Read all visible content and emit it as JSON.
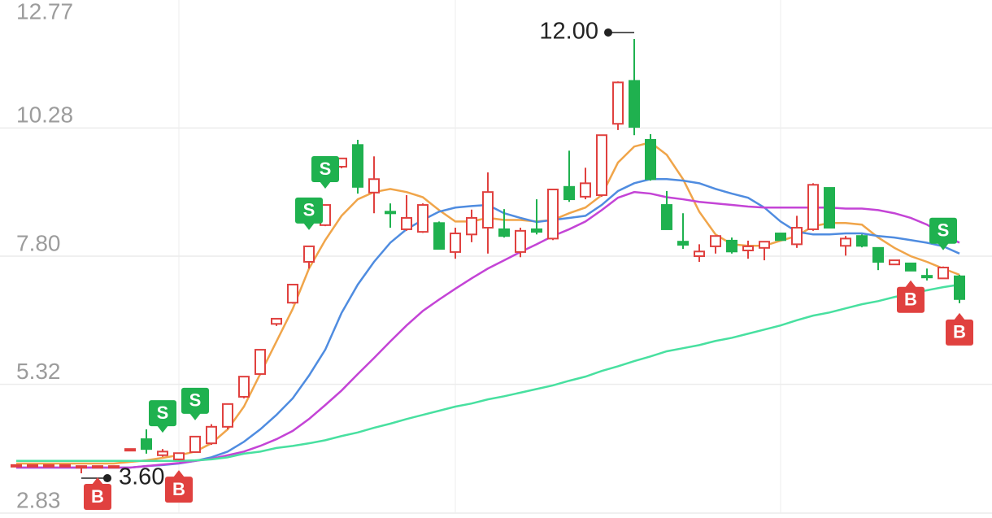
{
  "chart_data": {
    "type": "candlestick",
    "ylim": [
      2.83,
      12.77
    ],
    "yticks": [
      2.83,
      5.32,
      {
        "value": 7.8,
        "label": "7.80"
      },
      10.28,
      12.77
    ],
    "grid": true,
    "up_color": "#e0413f",
    "down_color": "#1fb14f",
    "open": [
      3.74,
      3.74,
      3.74,
      3.74,
      3.71,
      3.71,
      3.71,
      4.05,
      4.26,
      3.95,
      3.87,
      4.01,
      4.18,
      4.5,
      5.08,
      5.52,
      6.49,
      6.9,
      7.69,
      8.4,
      9.53,
      9.95,
      9.03,
      8.66,
      8.32,
      8.27,
      8.44,
      7.88,
      8.22,
      8.35,
      8.32,
      7.88,
      8.32,
      8.14,
      9.14,
      8.95,
      8.98,
      10.36,
      11.19,
      10.05,
      8.79,
      8.08,
      7.8,
      7.99,
      8.1,
      7.91,
      7.96,
      8.24,
      8.03,
      8.32,
      9.12,
      8.0,
      8.19,
      7.96,
      7.64,
      7.66,
      7.42,
      7.37,
      7.41
    ],
    "high": [
      3.76,
      3.76,
      3.76,
      3.76,
      3.74,
      3.74,
      3.74,
      4.07,
      4.45,
      4.07,
      3.99,
      4.31,
      4.55,
      4.94,
      5.47,
      5.99,
      6.59,
      7.25,
      7.99,
      8.79,
      9.69,
      10.05,
      9.73,
      8.82,
      8.98,
      8.82,
      8.47,
      8.35,
      8.7,
      9.42,
      8.71,
      8.35,
      8.9,
      9.09,
      9.84,
      9.51,
      10.14,
      11.18,
      12.0,
      10.16,
      9.06,
      8.63,
      8.03,
      8.19,
      8.16,
      8.1,
      8.08,
      8.24,
      8.58,
      9.21,
      9.12,
      8.19,
      8.22,
      7.96,
      7.72,
      7.66,
      7.56,
      7.6,
      7.44
    ],
    "low": [
      3.74,
      3.74,
      3.74,
      3.74,
      3.6,
      3.71,
      3.71,
      4.05,
      3.98,
      3.92,
      3.85,
      4.0,
      4.15,
      4.45,
      5.05,
      5.5,
      6.45,
      6.88,
      7.56,
      8.38,
      9.5,
      9.01,
      8.63,
      8.35,
      8.29,
      8.25,
      7.94,
      7.75,
      8.07,
      7.85,
      8.16,
      7.78,
      8.22,
      8.11,
      8.85,
      8.9,
      8.95,
      10.24,
      10.14,
      9.26,
      8.32,
      7.94,
      7.69,
      7.85,
      7.85,
      7.75,
      7.72,
      8.11,
      7.96,
      8.29,
      8.35,
      7.81,
      7.97,
      7.53,
      7.64,
      7.52,
      7.33,
      7.37,
      6.89
    ],
    "close": [
      3.76,
      3.76,
      3.76,
      3.76,
      3.74,
      3.74,
      3.74,
      4.07,
      4.07,
      4.02,
      3.99,
      4.31,
      4.5,
      4.94,
      5.47,
      5.99,
      6.59,
      7.25,
      7.99,
      8.79,
      9.69,
      9.14,
      9.29,
      8.63,
      8.54,
      8.79,
      7.94,
      8.24,
      8.54,
      9.04,
      8.19,
      8.29,
      8.27,
      9.09,
      8.9,
      9.21,
      10.14,
      11.16,
      10.3,
      9.29,
      8.32,
      8.02,
      7.89,
      8.19,
      7.89,
      7.99,
      8.08,
      8.11,
      8.35,
      9.18,
      8.35,
      8.14,
      8.0,
      7.69,
      7.72,
      7.52,
      7.4,
      7.58,
      6.97
    ],
    "signals": [
      null,
      null,
      null,
      null,
      null,
      "B",
      null,
      null,
      null,
      "S",
      "B",
      "S",
      null,
      null,
      null,
      null,
      null,
      null,
      "S",
      "S",
      null,
      null,
      null,
      null,
      null,
      null,
      null,
      null,
      null,
      null,
      null,
      null,
      null,
      null,
      null,
      null,
      null,
      null,
      null,
      null,
      null,
      null,
      null,
      null,
      null,
      null,
      null,
      null,
      null,
      null,
      null,
      null,
      null,
      null,
      null,
      "B",
      null,
      "S",
      "B"
    ],
    "high_label": "12.00",
    "low_label": "3.60",
    "series": [
      {
        "color": "#f0a54a",
        "values": [
          3.79,
          3.79,
          3.79,
          3.79,
          3.79,
          3.79,
          3.79,
          3.82,
          3.85,
          3.9,
          3.95,
          4.02,
          4.18,
          4.45,
          4.89,
          5.52,
          6.15,
          6.78,
          7.56,
          8.11,
          8.58,
          8.9,
          9.04,
          9.1,
          9.04,
          8.94,
          8.69,
          8.47,
          8.47,
          8.54,
          8.5,
          8.5,
          8.47,
          8.5,
          8.63,
          8.74,
          8.98,
          9.61,
          9.92,
          10.0,
          9.76,
          9.29,
          8.66,
          8.22,
          8.03,
          8.0,
          8.0,
          8.1,
          8.19,
          8.38,
          8.44,
          8.44,
          8.41,
          8.16,
          7.96,
          7.8,
          7.69,
          7.56,
          7.44
        ]
      },
      {
        "color": "#4f8ce0",
        "values": [
          3.71,
          3.71,
          3.71,
          3.71,
          3.71,
          3.71,
          3.71,
          3.71,
          3.74,
          3.76,
          3.79,
          3.84,
          3.91,
          4.02,
          4.21,
          4.45,
          4.73,
          5.05,
          5.49,
          5.99,
          6.7,
          7.25,
          7.69,
          8.06,
          8.32,
          8.5,
          8.66,
          8.74,
          8.77,
          8.79,
          8.63,
          8.54,
          8.46,
          8.5,
          8.54,
          8.58,
          8.79,
          9.06,
          9.21,
          9.29,
          9.29,
          9.26,
          9.21,
          9.1,
          9.01,
          8.93,
          8.74,
          8.47,
          8.27,
          8.22,
          8.22,
          8.24,
          8.24,
          8.19,
          8.16,
          8.11,
          8.06,
          7.99,
          7.85
        ]
      },
      {
        "color": "#c444d6",
        "values": [
          3.71,
          3.71,
          3.71,
          3.71,
          3.71,
          3.71,
          3.71,
          3.71,
          3.74,
          3.77,
          3.8,
          3.84,
          3.88,
          3.95,
          4.02,
          4.13,
          4.26,
          4.42,
          4.65,
          4.92,
          5.2,
          5.52,
          5.83,
          6.15,
          6.46,
          6.74,
          6.96,
          7.17,
          7.37,
          7.56,
          7.72,
          7.88,
          8.03,
          8.19,
          8.32,
          8.47,
          8.69,
          8.93,
          9.04,
          9.01,
          8.94,
          8.9,
          8.85,
          8.82,
          8.79,
          8.76,
          8.74,
          8.74,
          8.74,
          8.74,
          8.74,
          8.72,
          8.72,
          8.69,
          8.63,
          8.54,
          8.41,
          8.22,
          8.06
        ]
      },
      {
        "color": "#48e0a0",
        "values": [
          3.84,
          3.84,
          3.84,
          3.84,
          3.84,
          3.84,
          3.84,
          3.84,
          3.84,
          3.84,
          3.84,
          3.85,
          3.87,
          3.91,
          3.98,
          4.02,
          4.09,
          4.13,
          4.18,
          4.24,
          4.32,
          4.39,
          4.48,
          4.56,
          4.65,
          4.73,
          4.81,
          4.89,
          4.95,
          5.03,
          5.09,
          5.16,
          5.23,
          5.3,
          5.39,
          5.47,
          5.58,
          5.67,
          5.77,
          5.86,
          5.96,
          6.02,
          6.08,
          6.16,
          6.22,
          6.3,
          6.38,
          6.46,
          6.56,
          6.65,
          6.71,
          6.79,
          6.87,
          6.93,
          7.01,
          7.07,
          7.14,
          7.2,
          7.25
        ]
      }
    ]
  }
}
